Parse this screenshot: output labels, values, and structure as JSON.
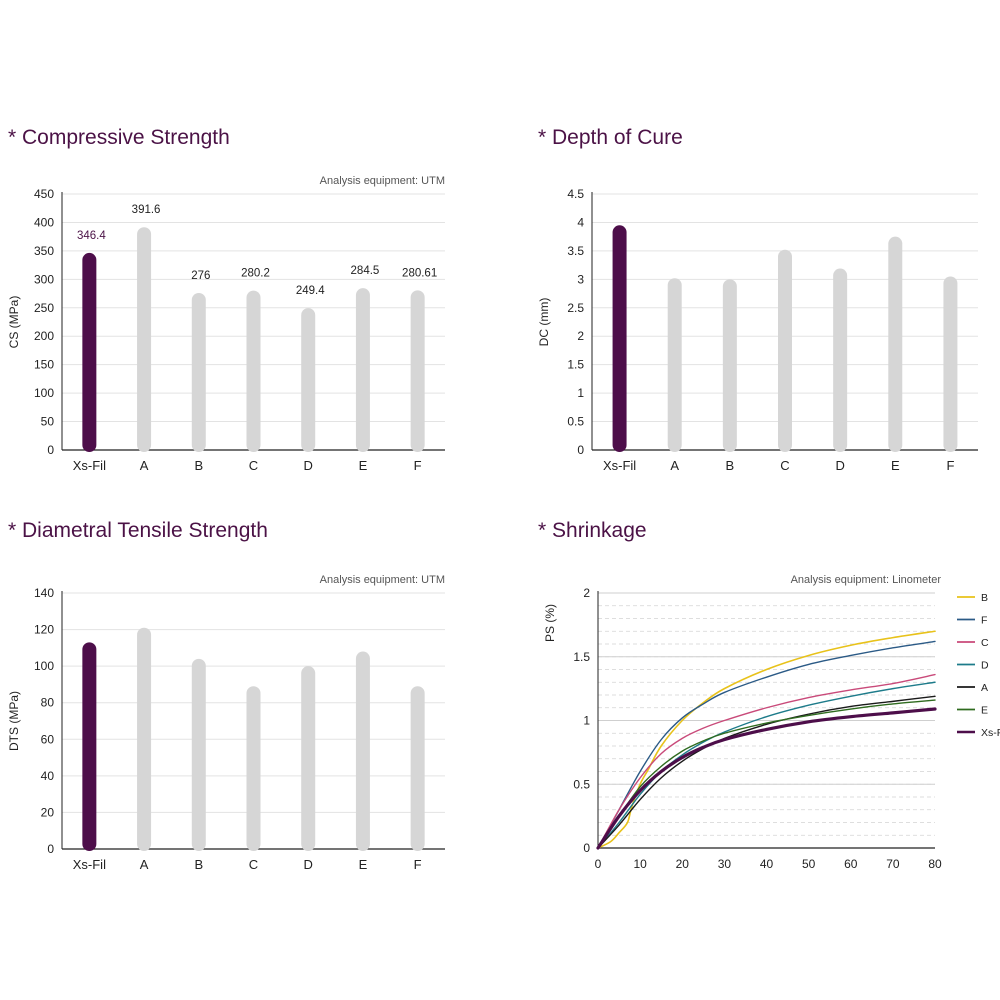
{
  "colors": {
    "title": "#4b1246",
    "highlight": "#4d0e4a",
    "bar": "#d6d6d6",
    "axis": "#222222",
    "grid": "#e3e3e3",
    "text": "#222222",
    "subtext": "#555555"
  },
  "chart_data": [
    {
      "type": "bar",
      "title": "* Compressive Strength",
      "note": "Analysis equipment: UTM",
      "xlabel": "",
      "ylabel": "CS (MPa)",
      "categories": [
        "Xs-Fil",
        "A",
        "B",
        "C",
        "D",
        "E",
        "F"
      ],
      "values": [
        346.4,
        391.6,
        276,
        280.2,
        249.4,
        284.5,
        280.61
      ],
      "labels": [
        "346.4",
        "391.6",
        "276",
        "280.2",
        "249.4",
        "284.5",
        "280.61"
      ],
      "ylim": [
        0,
        450
      ],
      "yticks": [
        0,
        50,
        100,
        150,
        200,
        250,
        300,
        350,
        400,
        450
      ],
      "ytick_labels": [
        "0",
        "50",
        "100",
        "150",
        "200",
        "250",
        "300",
        "350",
        "400",
        "450"
      ],
      "highlight_index": 0,
      "grid": true
    },
    {
      "type": "bar",
      "title": "* Depth of Cure",
      "note": "",
      "xlabel": "",
      "ylabel": "DC (mm)",
      "categories": [
        "Xs-Fil",
        "A",
        "B",
        "C",
        "D",
        "E",
        "F"
      ],
      "values": [
        3.95,
        3.02,
        3.0,
        3.52,
        3.19,
        3.75,
        3.05
      ],
      "ylim": [
        0,
        4.5
      ],
      "yticks": [
        0,
        0.5,
        1,
        1.5,
        2,
        2.5,
        3,
        3.5,
        4,
        4.5
      ],
      "ytick_labels": [
        "0",
        "0.5",
        "1",
        "1.5",
        "2",
        "2.5",
        "3",
        "3.5",
        "4",
        "4.5"
      ],
      "highlight_index": 0,
      "grid": true
    },
    {
      "type": "bar",
      "title": "* Diametral Tensile Strength",
      "note": "Analysis equipment: UTM",
      "xlabel": "",
      "ylabel": "DTS (MPa)",
      "categories": [
        "Xs-Fil",
        "A",
        "B",
        "C",
        "D",
        "E",
        "F"
      ],
      "values": [
        113,
        121,
        104,
        89,
        100,
        108,
        89
      ],
      "ylim": [
        0,
        140
      ],
      "yticks": [
        0,
        20,
        40,
        60,
        80,
        100,
        120,
        140
      ],
      "ytick_labels": [
        "0",
        "20",
        "40",
        "60",
        "80",
        "100",
        "120",
        "140"
      ],
      "highlight_index": 0,
      "grid": true
    },
    {
      "type": "line",
      "title": "* Shrinkage",
      "note": "Analysis equipment: Linometer",
      "xlabel": "",
      "ylabel": "PS (%)",
      "xlim": [
        0,
        80
      ],
      "ylim": [
        0,
        2
      ],
      "xticks": [
        0,
        10,
        20,
        30,
        40,
        50,
        60,
        70,
        80
      ],
      "xtick_labels": [
        "0",
        "10",
        "20",
        "30",
        "40",
        "50",
        "60",
        "70",
        "80"
      ],
      "yticks": [
        0,
        0.5,
        1,
        1.5,
        2
      ],
      "ytick_labels": [
        "0",
        "0.5",
        "1",
        "1.5",
        "2"
      ],
      "legend_position": "right",
      "grid": true,
      "series": [
        {
          "name": "B",
          "color": "#e8c21a",
          "width": 1.6,
          "x": [
            0,
            3,
            5,
            7,
            8,
            10,
            12,
            15,
            20,
            25,
            30,
            40,
            50,
            60,
            70,
            80
          ],
          "y": [
            0,
            0.05,
            0.12,
            0.2,
            0.32,
            0.5,
            0.62,
            0.8,
            1.0,
            1.14,
            1.25,
            1.4,
            1.51,
            1.59,
            1.65,
            1.7
          ]
        },
        {
          "name": "F",
          "color": "#2b5a86",
          "width": 1.4,
          "x": [
            0,
            5,
            10,
            15,
            20,
            25,
            30,
            40,
            50,
            60,
            70,
            80
          ],
          "y": [
            0,
            0.3,
            0.6,
            0.85,
            1.02,
            1.13,
            1.22,
            1.34,
            1.44,
            1.51,
            1.57,
            1.62
          ]
        },
        {
          "name": "C",
          "color": "#c94a7a",
          "width": 1.4,
          "x": [
            0,
            5,
            10,
            15,
            20,
            25,
            30,
            40,
            50,
            60,
            70,
            80
          ],
          "y": [
            0,
            0.3,
            0.55,
            0.74,
            0.86,
            0.94,
            1.0,
            1.1,
            1.18,
            1.24,
            1.29,
            1.36
          ]
        },
        {
          "name": "D",
          "color": "#1d7b8a",
          "width": 1.4,
          "x": [
            0,
            5,
            10,
            15,
            20,
            25,
            30,
            40,
            50,
            60,
            70,
            80
          ],
          "y": [
            0,
            0.2,
            0.42,
            0.6,
            0.73,
            0.83,
            0.91,
            1.03,
            1.12,
            1.19,
            1.25,
            1.3
          ]
        },
        {
          "name": "A",
          "color": "#1a1a1a",
          "width": 1.4,
          "x": [
            0,
            5,
            10,
            15,
            20,
            25,
            30,
            40,
            50,
            60,
            70,
            80
          ],
          "y": [
            0,
            0.18,
            0.38,
            0.55,
            0.68,
            0.78,
            0.86,
            0.97,
            1.05,
            1.11,
            1.15,
            1.19
          ]
        },
        {
          "name": "E",
          "color": "#2f6b1f",
          "width": 1.4,
          "x": [
            0,
            5,
            10,
            15,
            20,
            25,
            30,
            40,
            50,
            60,
            70,
            80
          ],
          "y": [
            0,
            0.25,
            0.48,
            0.64,
            0.76,
            0.84,
            0.9,
            0.98,
            1.04,
            1.09,
            1.13,
            1.16
          ]
        },
        {
          "name": "Xs-Fil",
          "color": "#4d0e4a",
          "width": 3.2,
          "x": [
            0,
            5,
            10,
            15,
            20,
            25,
            30,
            40,
            50,
            60,
            70,
            80
          ],
          "y": [
            0,
            0.25,
            0.45,
            0.6,
            0.71,
            0.79,
            0.85,
            0.93,
            0.99,
            1.03,
            1.06,
            1.09
          ]
        }
      ]
    }
  ]
}
